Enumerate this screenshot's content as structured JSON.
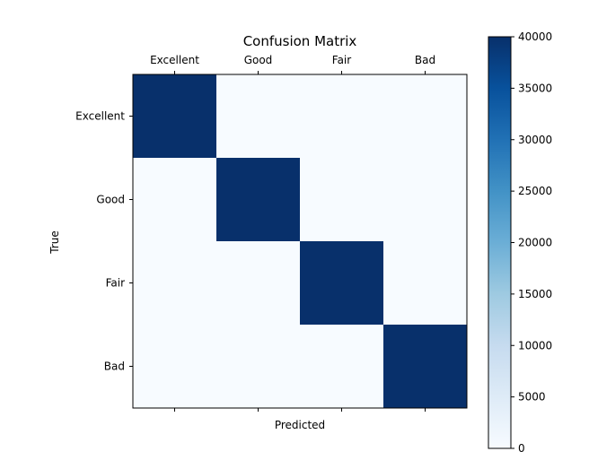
{
  "chart_data": {
    "type": "heatmap",
    "title": "Confusion Matrix",
    "xlabel": "Predicted",
    "ylabel": "True",
    "x_categories": [
      "Excellent",
      "Good",
      "Fair",
      "Bad"
    ],
    "y_categories": [
      "Excellent",
      "Good",
      "Fair",
      "Bad"
    ],
    "values": [
      [
        40000,
        0,
        0,
        0
      ],
      [
        0,
        40000,
        0,
        0
      ],
      [
        0,
        0,
        40000,
        0
      ],
      [
        0,
        0,
        0,
        40000
      ]
    ],
    "colormap": "Blues",
    "colorbar": {
      "range": [
        0,
        40000
      ],
      "ticks": [
        0,
        5000,
        10000,
        15000,
        20000,
        25000,
        30000,
        35000,
        40000
      ]
    },
    "x_tick_position": "top",
    "grid": false
  }
}
